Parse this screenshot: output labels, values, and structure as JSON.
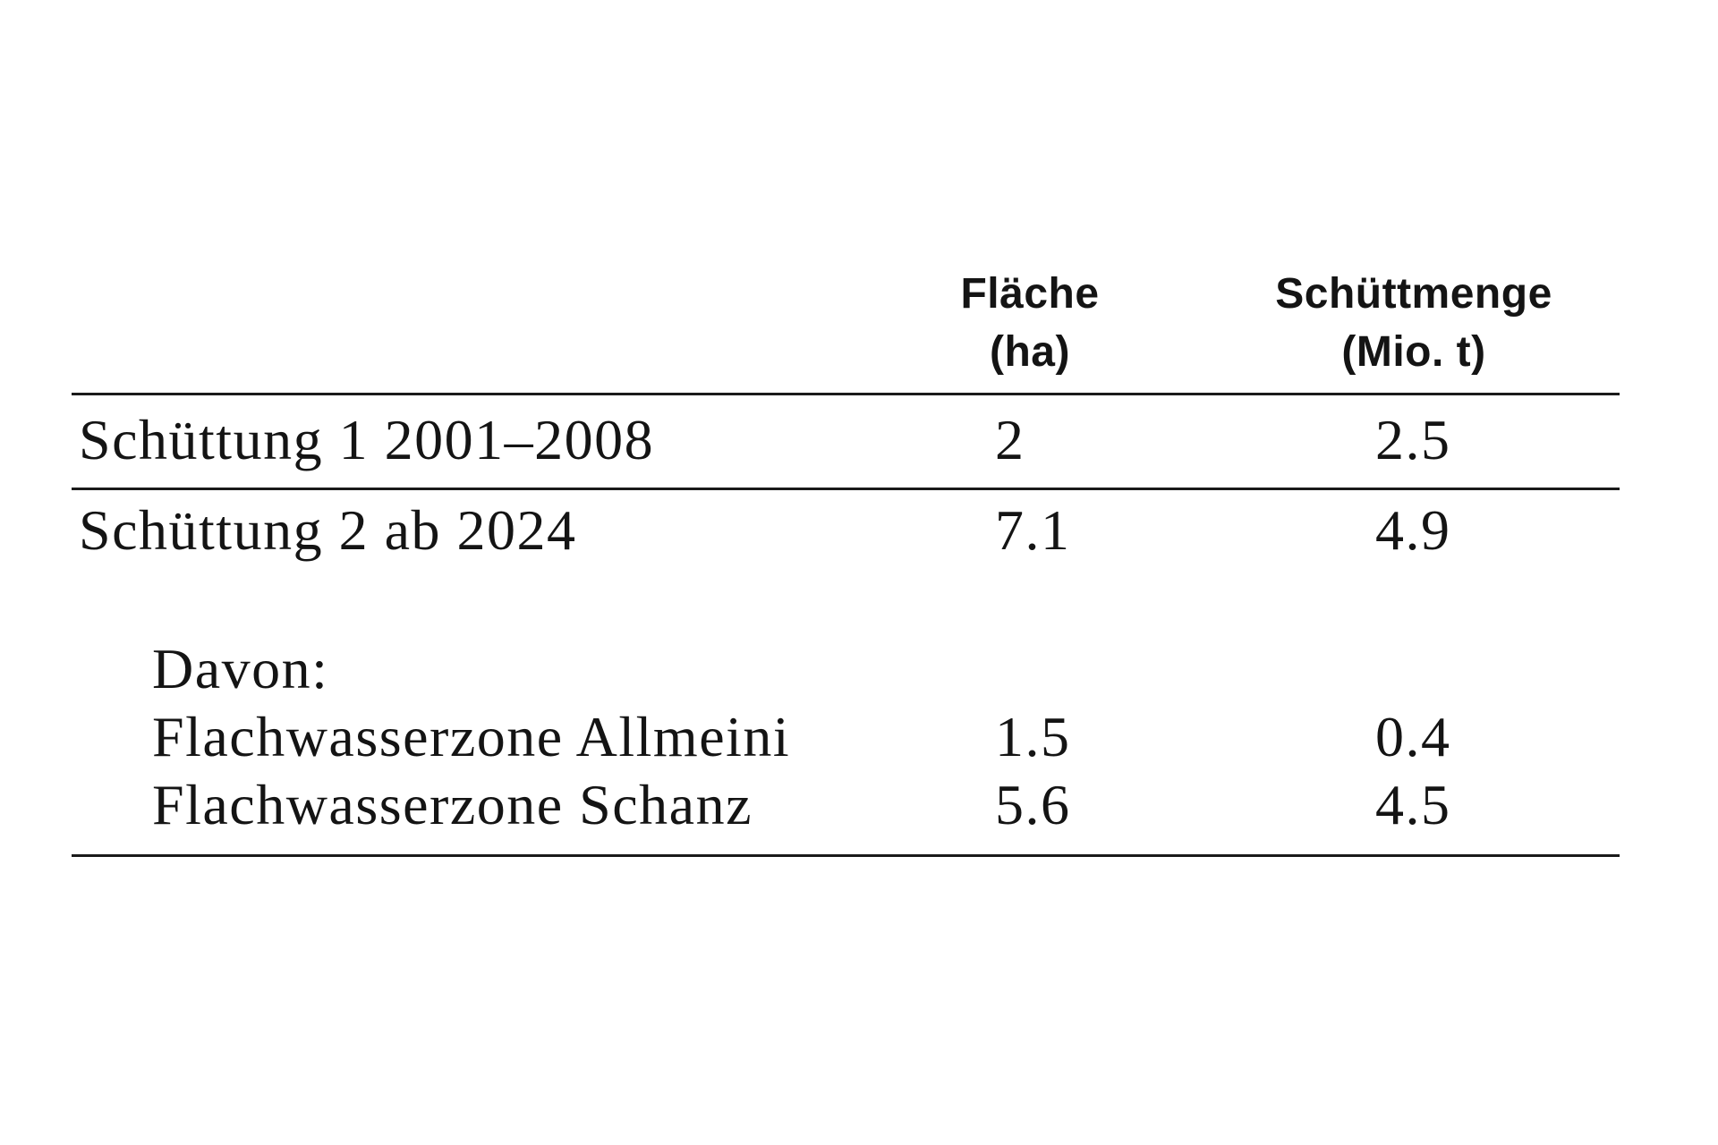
{
  "table": {
    "header": {
      "flaeche": {
        "line1": "Fläche",
        "line2": "(ha)"
      },
      "schuettmenge": {
        "line1": "Schüttmenge",
        "line2": "(Mio. t)"
      }
    },
    "rows": [
      {
        "label": "Schüttung 1 2001–2008",
        "flaeche": "2",
        "schuettmenge": "2.5"
      },
      {
        "label": "Schüttung 2 ab 2024",
        "flaeche": "7.1",
        "schuettmenge": "4.9"
      }
    ],
    "subgroup_label": "Davon:",
    "subrows": [
      {
        "label": "Flachwasserzone Allmeini",
        "flaeche": "1.5",
        "schuettmenge": "0.4"
      },
      {
        "label": "Flachwasserzone Schanz",
        "flaeche": "5.6",
        "schuettmenge": "4.5"
      }
    ]
  },
  "colors": {
    "text": "#141414",
    "rule": "#1a1a1a",
    "background": "#ffffff"
  }
}
